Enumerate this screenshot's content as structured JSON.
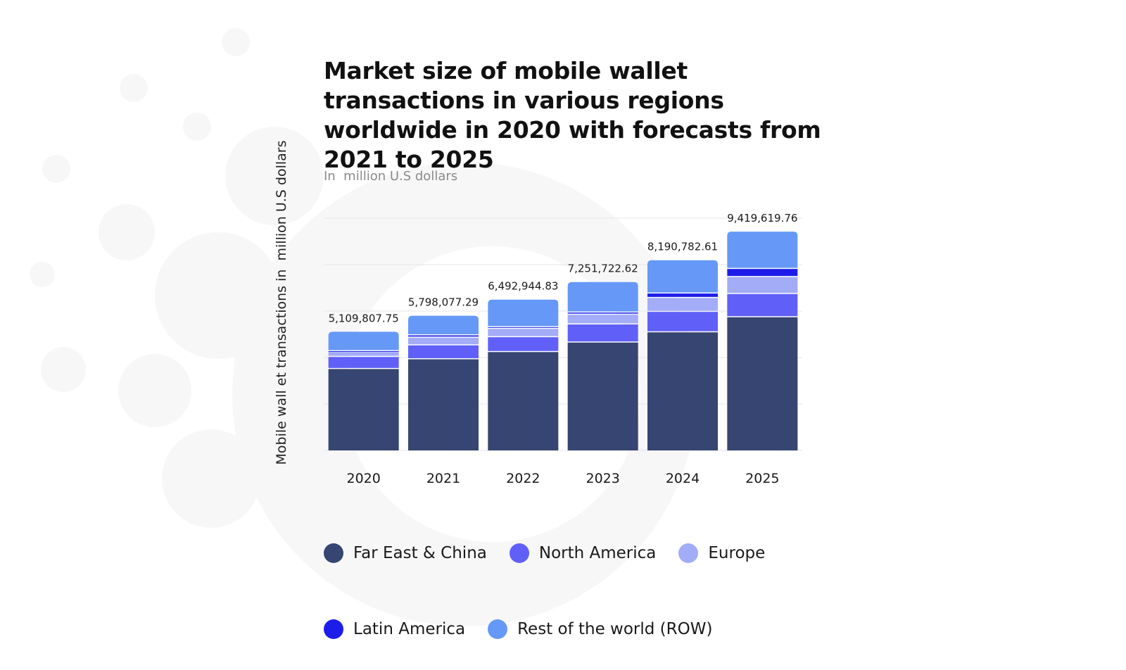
{
  "chart_data": {
    "type": "bar",
    "stacked": true,
    "title": "Market size of mobile wallet transactions in various regions worldwide in 2020 with forecasts from 2021 to 2025",
    "subtitle": "In  million U.S dollars",
    "ylabel": "Mobile wall et transactions in  million U.S dollars",
    "xlabel": "",
    "categories": [
      "2020",
      "2021",
      "2022",
      "2023",
      "2024",
      "2025"
    ],
    "totals": [
      5109807.75,
      5798077.29,
      6492944.83,
      7251722.62,
      8190782.61,
      9419619.76
    ],
    "total_labels": [
      "5,109,807.75",
      "5,798,077.29",
      "6,492,944.83",
      "7,251,722.62",
      "8,190,782.61",
      "9,419,619.76"
    ],
    "series": [
      {
        "name": "Far East & China",
        "color": "#364571",
        "values": [
          3550000,
          3970000,
          4280000,
          4690000,
          5130000,
          5780000
        ]
      },
      {
        "name": "North America",
        "color": "#6060f8",
        "values": [
          520000,
          600000,
          640000,
          780000,
          880000,
          1000000
        ]
      },
      {
        "name": "Europe",
        "color": "#a3acf7",
        "values": [
          210000,
          330000,
          360000,
          420000,
          600000,
          730000
        ]
      },
      {
        "name": "Latin America",
        "color": "#1d1dea",
        "values": [
          40000,
          100000,
          72944.83,
          91722.62,
          190782.61,
          349619.76
        ]
      },
      {
        "name": "Rest of the world (ROW)",
        "color": "#6699f7",
        "values": [
          789807.75,
          798077.29,
          1140000,
          1270000,
          1390000,
          1560000
        ]
      }
    ],
    "ylim": [
      0,
      10000000
    ],
    "grid": true,
    "legend_position": "bottom"
  }
}
